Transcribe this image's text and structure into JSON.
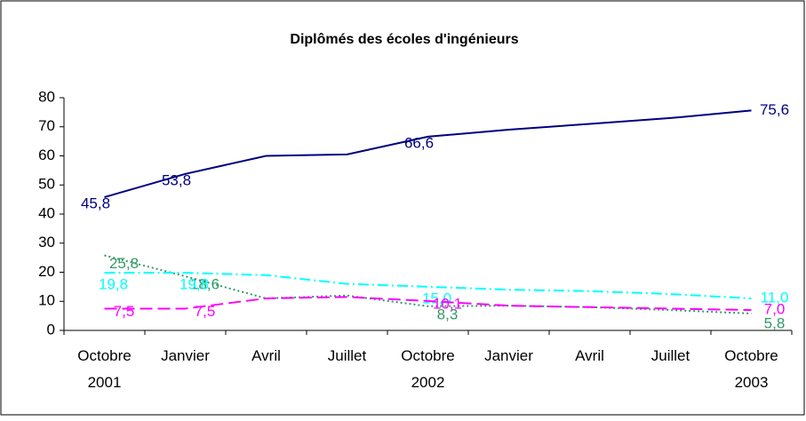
{
  "chart_data": {
    "type": "line",
    "title": "Diplômés des écoles d'ingénieurs",
    "categories": [
      "Octobre 2001",
      "Janvier",
      "Avril",
      "Juillet",
      "Octobre 2002",
      "Janvier",
      "Avril",
      "Juillet",
      "Octobre 2003"
    ],
    "series": [
      {
        "color": "#000080",
        "dash": "solid",
        "values": [
          45.8,
          53.8,
          60,
          60.5,
          66.6,
          69,
          71,
          73,
          75.6
        ],
        "value_labels": [
          "45,8",
          "53,8",
          null,
          null,
          "66,6",
          null,
          null,
          null,
          "75,6"
        ]
      },
      {
        "color": "#339966",
        "dash": "dotted",
        "values": [
          25.8,
          18.6,
          11,
          12,
          8.3,
          8.5,
          8,
          7,
          5.8
        ],
        "value_labels": [
          "25,8",
          "18,6",
          null,
          null,
          "8,3",
          null,
          null,
          null,
          "5,8"
        ]
      },
      {
        "color": "#00ffff",
        "dash": "dashdot",
        "values": [
          19.8,
          19.8,
          19,
          16,
          15.0,
          14,
          13.5,
          12.5,
          11.0
        ],
        "value_labels": [
          "19,8",
          "19,8",
          null,
          null,
          "15,0",
          null,
          null,
          null,
          "11,0"
        ]
      },
      {
        "color": "#ff00ff",
        "dash": "dashed",
        "values": [
          7.5,
          7.5,
          11,
          11.5,
          10.1,
          8.5,
          8,
          7.5,
          7.0
        ],
        "value_labels": [
          "7,5",
          "7,5",
          null,
          null,
          "10,1",
          null,
          null,
          null,
          "7,0"
        ]
      }
    ],
    "ylim": [
      0,
      80
    ],
    "yticks": [
      0,
      10,
      20,
      30,
      40,
      50,
      60,
      70,
      80
    ],
    "grid": false
  }
}
